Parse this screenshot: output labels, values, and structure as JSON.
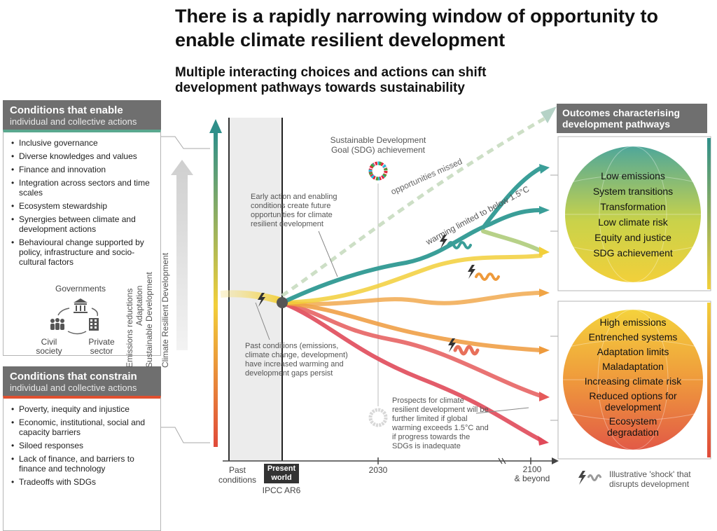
{
  "title": "There is a rapidly narrowing window of opportunity to enable climate resilient development",
  "subtitle": "Multiple interacting choices and actions can shift development pathways towards sustainability",
  "enable": {
    "title": "Conditions that enable",
    "subtitle": "individual and collective actions",
    "items": [
      "Inclusive governance",
      "Diverse knowledges and values",
      "Finance and innovation",
      "Integration across sectors and time scales",
      "Ecosystem stewardship",
      "Synergies between climate and development actions",
      "Behavioural change supported by policy, infrastructure and socio-cultural factors"
    ],
    "actors": {
      "governments": "Governments",
      "civil": "Civil society",
      "private": "Private sector"
    }
  },
  "constrain": {
    "title": "Conditions that constrain",
    "subtitle": "individual and collective actions",
    "items": [
      "Poverty, inequity and injustice",
      "Economic, institutional, social and capacity barriers",
      "Siloed responses",
      "Lack of finance, and barriers to finance and technology",
      "Tradeoffs with SDGs"
    ]
  },
  "vertical_labels": {
    "emissions": "Emissions reductions",
    "adaptation": "Adaptation",
    "sustainable": "Sustainable Development",
    "crd": "Climate Resilient Development"
  },
  "annotations": {
    "sdg": "Sustainable Development Goal (SDG) achievement",
    "missed": "opportunities missed",
    "warming": "warming limited to below 1.5°C",
    "early": "Early action and enabling conditions create future opportunities for climate resilient development",
    "past": "Past conditions (emissions, climate change, development) have increased warming and development gaps persist",
    "prospects": "Prospects for climate resilient development will be further limited if global warming exceeds 1.5°C and if progress towards the SDGs is inadequate"
  },
  "axis": {
    "past": "Past conditions",
    "present": "Present world",
    "ipcc": "IPCC AR6",
    "y2030": "2030",
    "y2100": "2100",
    "beyond": "& beyond"
  },
  "outcomes": {
    "title": "Outcomes characterising development pathways",
    "positive": [
      "Low emissions",
      "System transitions",
      "Transformation",
      "Low climate risk",
      "Equity and justice",
      "SDG achievement"
    ],
    "negative": [
      "High emissions",
      "Entrenched systems",
      "Adaptation limits",
      "Maladaptation",
      "Increasing climate risk",
      "Reduced options for development",
      "Ecosystem degradation"
    ]
  },
  "legend": {
    "shock": "Illustrative 'shock' that disrupts development"
  },
  "colors": {
    "teal": "#3a9e98",
    "yellow": "#f2cf3a",
    "orange": "#ee9a3c",
    "red": "#e04a5a",
    "panel_gray": "#6f6f6f"
  }
}
